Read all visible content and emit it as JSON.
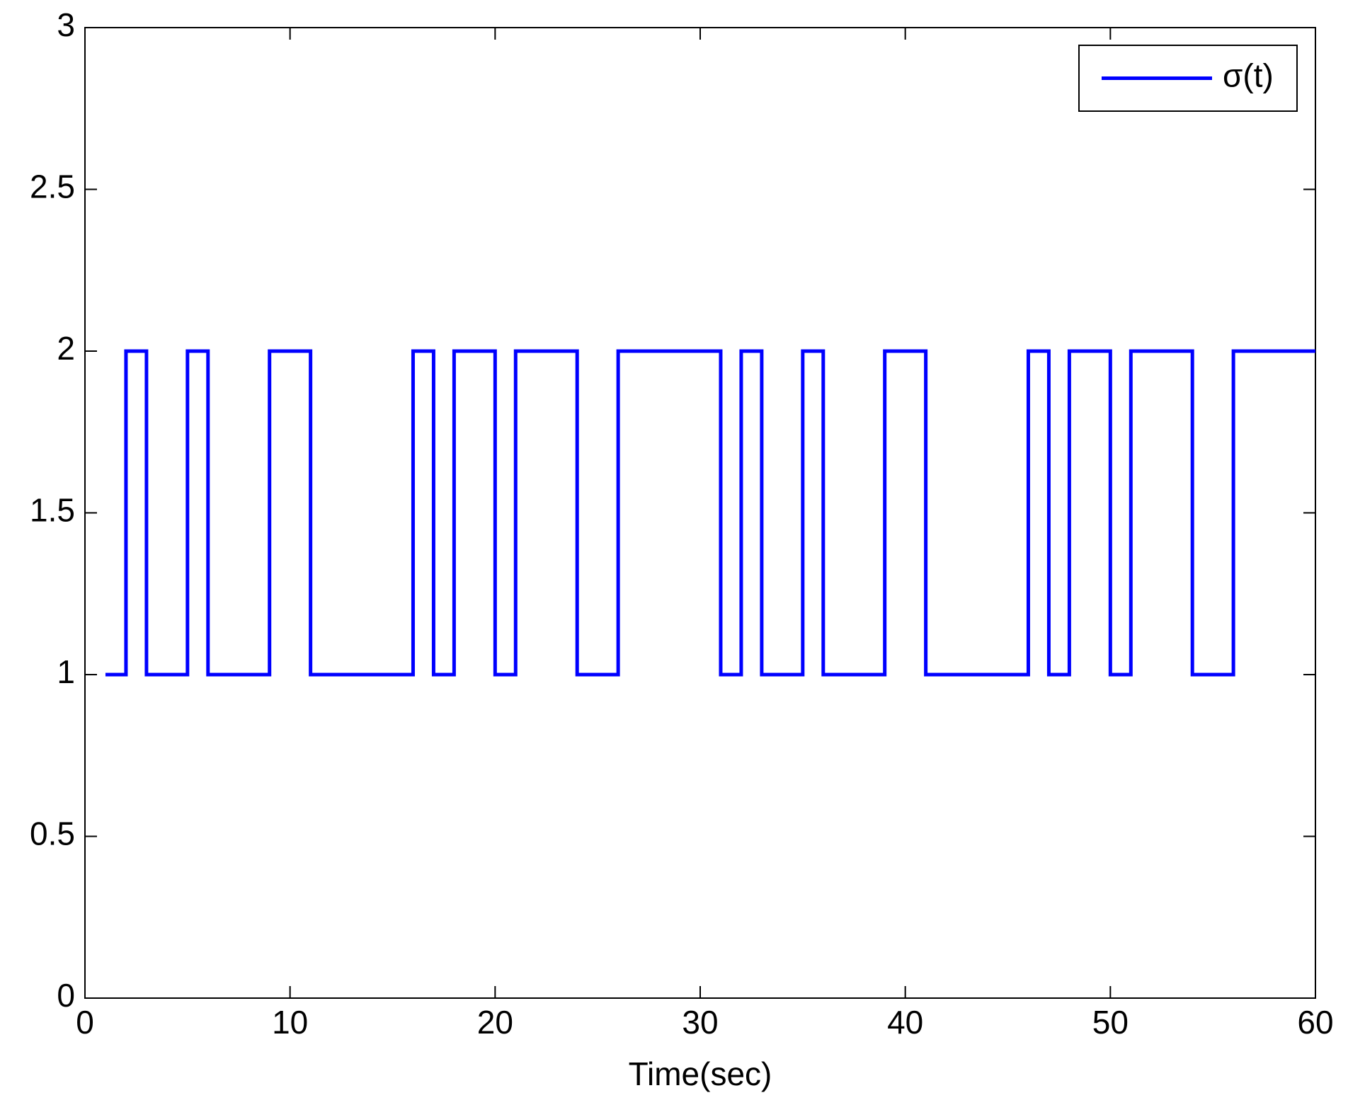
{
  "chart_data": {
    "type": "line",
    "step": "post",
    "x_label": "Time(sec)",
    "x": [
      1,
      2,
      3,
      4,
      5,
      6,
      7,
      8,
      9,
      10,
      11,
      12,
      13,
      14,
      15,
      16,
      17,
      18,
      19,
      20,
      21,
      22,
      23,
      24,
      25,
      26,
      27,
      28,
      29,
      30,
      31,
      32,
      33,
      34,
      35,
      36,
      37,
      38,
      39,
      40,
      41,
      42,
      43,
      44,
      45,
      46,
      47,
      48,
      49,
      50,
      51,
      52,
      53,
      54,
      55,
      56,
      57,
      58,
      59,
      60
    ],
    "series": [
      {
        "name": "σ(t)",
        "color": "#0000ff",
        "values": [
          1,
          2,
          1,
          1,
          2,
          1,
          1,
          1,
          2,
          2,
          1,
          1,
          1,
          1,
          1,
          2,
          1,
          2,
          2,
          1,
          2,
          2,
          2,
          1,
          1,
          2,
          2,
          2,
          2,
          2,
          1,
          2,
          1,
          1,
          2,
          1,
          1,
          1,
          2,
          2,
          1,
          1,
          1,
          1,
          1,
          2,
          1,
          2,
          2,
          1,
          2,
          2,
          2,
          1,
          1,
          2,
          2,
          2,
          2,
          2
        ]
      }
    ],
    "xlim": [
      0,
      60
    ],
    "xticks": [
      0,
      10,
      20,
      30,
      40,
      50,
      60
    ],
    "ylim": [
      0,
      3
    ],
    "yticks": [
      0,
      0.5,
      1,
      1.5,
      2,
      2.5,
      3
    ],
    "grid": false,
    "legend": "upper right"
  }
}
